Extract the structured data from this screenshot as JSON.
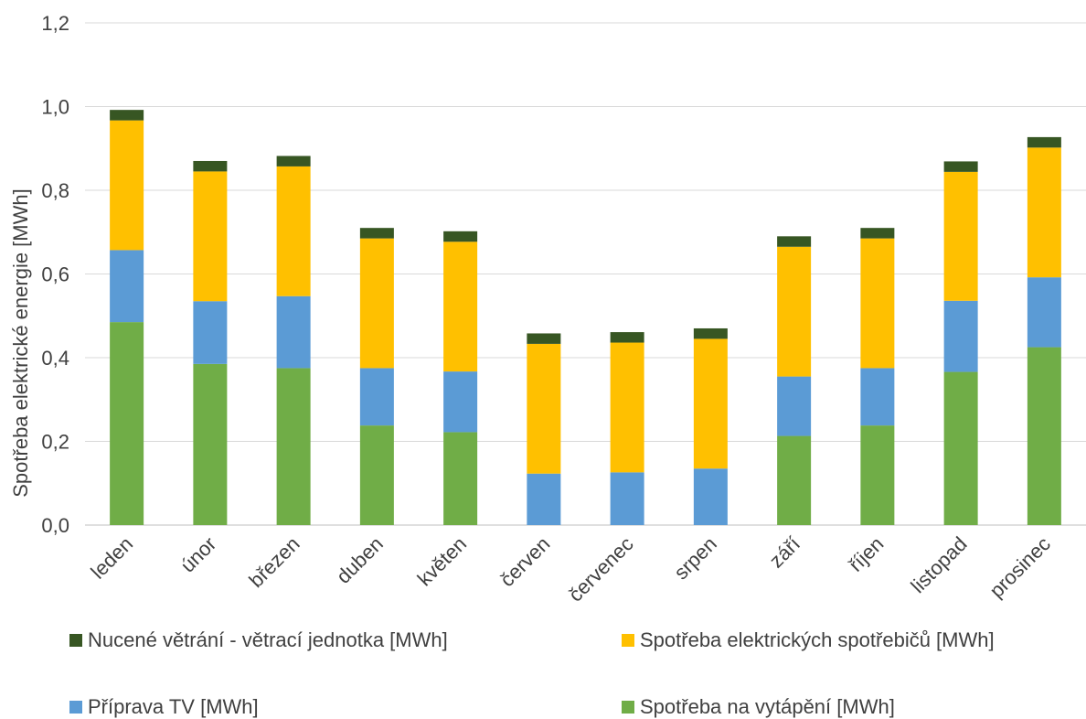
{
  "chart_data": {
    "type": "bar",
    "stacked": true,
    "ylabel": "Spotřeba elektrické energie  [MWh]",
    "ylim": [
      0,
      1.2
    ],
    "yticks": [
      "0,0",
      "0,2",
      "0,4",
      "0,6",
      "0,8",
      "1,0",
      "1,2"
    ],
    "grid": true,
    "legend_position": "bottom",
    "categories": [
      "leden",
      "únor",
      "březen",
      "duben",
      "květen",
      "červen",
      "červenec",
      "srpen",
      "září",
      "říjen",
      "listopad",
      "prosinec"
    ],
    "series": [
      {
        "name": "Spotřeba na vytápění [MWh]",
        "color": "#70ad47",
        "values": [
          0.485,
          0.385,
          0.375,
          0.238,
          0.222,
          0,
          0,
          0,
          0.213,
          0.238,
          0.366,
          0.425
        ]
      },
      {
        "name": "Příprava TV [MWh]",
        "color": "#5b9bd5",
        "values": [
          0.172,
          0.15,
          0.172,
          0.137,
          0.145,
          0.123,
          0.126,
          0.135,
          0.142,
          0.137,
          0.17,
          0.167
        ]
      },
      {
        "name": "Spotřeba elektrických spotřebičů [MWh]",
        "color": "#ffc000",
        "values": [
          0.31,
          0.31,
          0.31,
          0.31,
          0.31,
          0.31,
          0.31,
          0.31,
          0.31,
          0.31,
          0.308,
          0.31
        ]
      },
      {
        "name": "Nucené větrání - větrací jednotka [MWh]",
        "color": "#375623",
        "values": [
          0.025,
          0.025,
          0.025,
          0.025,
          0.025,
          0.025,
          0.025,
          0.025,
          0.025,
          0.025,
          0.025,
          0.025
        ]
      }
    ]
  },
  "legend": {
    "items": [
      {
        "label": "Nucené větrání - větrací jednotka [MWh]",
        "color": "#375623"
      },
      {
        "label": "Spotřeba elektrických spotřebičů [MWh]",
        "color": "#ffc000"
      },
      {
        "label": "Příprava TV [MWh]",
        "color": "#5b9bd5"
      },
      {
        "label": "Spotřeba na vytápění [MWh]",
        "color": "#70ad47"
      }
    ]
  }
}
